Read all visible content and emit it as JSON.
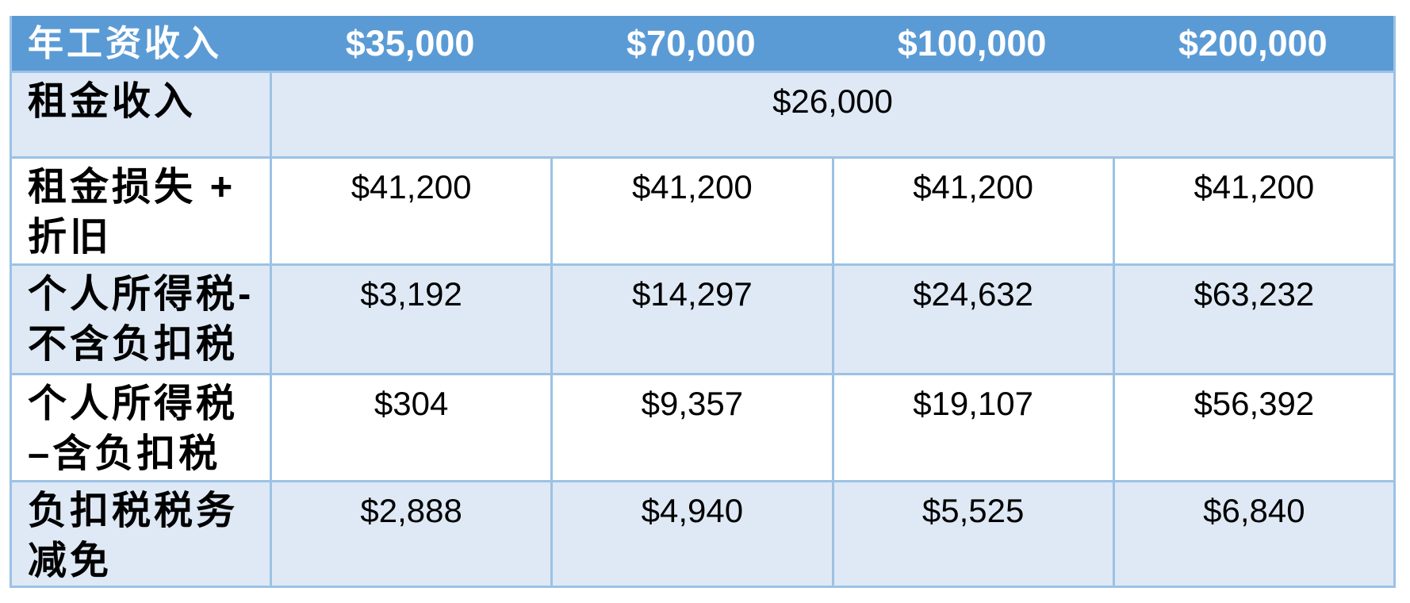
{
  "colors": {
    "header_bg": "#5B9BD5",
    "header_text": "#FFFFFF",
    "band_row_bg": "#DEE9F5",
    "plain_row_bg": "#FFFFFF",
    "grid_border": "#9CC2E5",
    "body_text": "#000000"
  },
  "chart_data": {
    "type": "table",
    "title": "",
    "currency": "$",
    "header_row": [
      "年工资收入",
      "$35,000",
      "$70,000",
      "$100,000",
      "$200,000"
    ],
    "header_values_numeric": [
      35000,
      70000,
      100000,
      200000
    ],
    "rows": [
      {
        "label": "租金收入",
        "label_lines": [
          "租金收入"
        ],
        "colspan": 4,
        "values": [
          "$26,000"
        ],
        "values_numeric": [
          26000
        ]
      },
      {
        "label": "租金损失 + 折旧",
        "label_lines": [
          "租金损失 +",
          "折旧"
        ],
        "values": [
          "$41,200",
          "$41,200",
          "$41,200",
          "$41,200"
        ],
        "values_numeric": [
          41200,
          41200,
          41200,
          41200
        ]
      },
      {
        "label": "个人所得税-不含负扣税",
        "label_lines": [
          "个人所得税-",
          "不含负扣税"
        ],
        "values": [
          "$3,192",
          "$14,297",
          "$24,632",
          "$63,232"
        ],
        "values_numeric": [
          3192,
          14297,
          24632,
          63232
        ]
      },
      {
        "label": "个人所得税 –含负扣税",
        "label_lines": [
          "个人所得税",
          "–含负扣税"
        ],
        "values": [
          "$304",
          "$9,357",
          "$19,107",
          "$56,392"
        ],
        "values_numeric": [
          304,
          9357,
          19107,
          56392
        ]
      },
      {
        "label": "负扣税税务减免",
        "label_lines": [
          "负扣税税务",
          "减免"
        ],
        "values": [
          "$2,888",
          "$4,940",
          "$5,525",
          "$6,840"
        ],
        "values_numeric": [
          2888,
          4940,
          5525,
          6840
        ]
      }
    ]
  }
}
